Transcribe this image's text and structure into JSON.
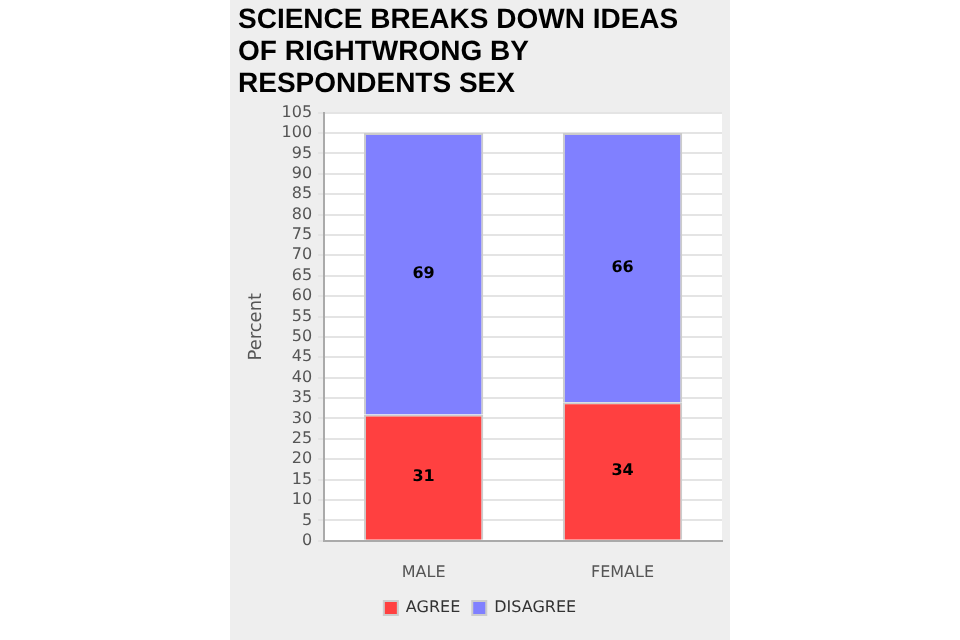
{
  "chart_data": {
    "type": "bar",
    "title": "SCIENCE BREAKS DOWN IDEAS OF RIGHTWRONG BY RESPONDENTS SEX",
    "ylabel": "Percent",
    "categories": [
      "MALE",
      "FEMALE"
    ],
    "stacked": true,
    "series": [
      {
        "name": "AGREE",
        "color": "#ff4040",
        "values": [
          31,
          34
        ]
      },
      {
        "name": "DISAGREE",
        "color": "#8080ff",
        "values": [
          69,
          66
        ]
      }
    ],
    "ylim": [
      0,
      105
    ],
    "yticks": [
      0,
      5,
      10,
      15,
      20,
      25,
      30,
      35,
      40,
      45,
      50,
      55,
      60,
      65,
      70,
      75,
      80,
      85,
      90,
      95,
      100,
      105
    ],
    "grid": "y",
    "legend": "bottom",
    "data_labels": true
  }
}
